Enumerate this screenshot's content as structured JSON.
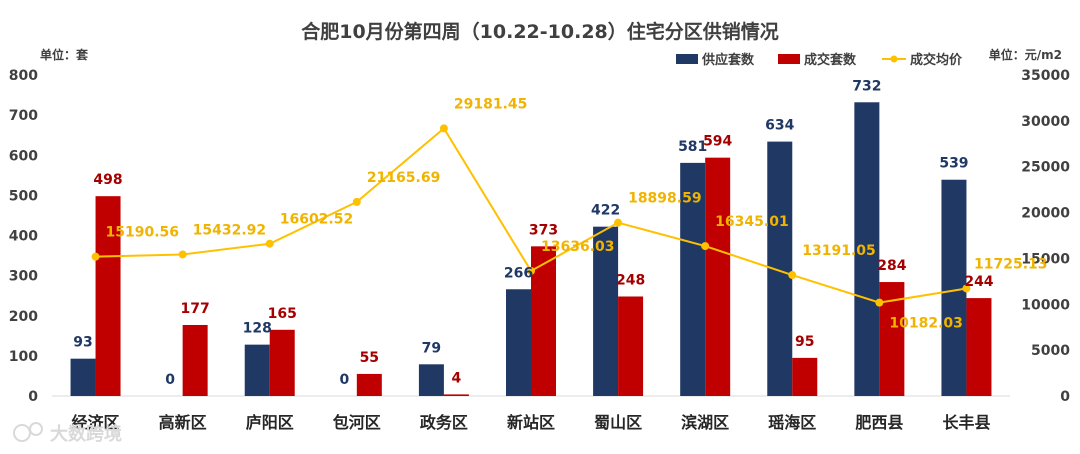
{
  "chart_data": {
    "type": "bar",
    "title": "合肥10月份第四周（10.22-10.28）住宅分区供销情况",
    "ylabel_left": "单位：套",
    "ylabel_right": "单位：元/m2",
    "ylim_left": [
      0,
      800
    ],
    "ylim_right": [
      0,
      35000
    ],
    "yticks_left": [
      "0",
      "100",
      "200",
      "300",
      "400",
      "500",
      "600",
      "700",
      "800"
    ],
    "yticks_right": [
      "0",
      "5000",
      "10000",
      "15000",
      "20000",
      "25000",
      "30000",
      "35000"
    ],
    "legend_position": "top-right",
    "grid": false,
    "categories": [
      "经济区",
      "高新区",
      "庐阳区",
      "包河区",
      "政务区",
      "新站区",
      "蜀山区",
      "滨湖区",
      "瑶海区",
      "肥西县",
      "长丰县"
    ],
    "series": [
      {
        "name": "供应套数",
        "kind": "bar",
        "axis": "left",
        "color": "#1f3864",
        "values": [
          93,
          0,
          128,
          0,
          79,
          266,
          422,
          581,
          634,
          732,
          539
        ],
        "labels": [
          "93",
          "0",
          "128",
          "0",
          "79",
          "266",
          "422",
          "581",
          "634",
          "732",
          "539"
        ]
      },
      {
        "name": "成交套数",
        "kind": "bar",
        "axis": "left",
        "color": "#c00000",
        "values": [
          498,
          177,
          165,
          55,
          4,
          373,
          248,
          594,
          95,
          284,
          244
        ],
        "labels": [
          "498",
          "177",
          "165",
          "55",
          "4",
          "373",
          "248",
          "594",
          "95",
          "284",
          "244"
        ]
      },
      {
        "name": "成交均价",
        "kind": "line",
        "axis": "right",
        "color": "#ffc000",
        "values": [
          15190.56,
          15432.92,
          16602.52,
          21165.69,
          29181.45,
          13636.03,
          18898.59,
          16345.01,
          13191.05,
          10182.03,
          11725.13
        ],
        "labels": [
          "15190.56",
          "15432.92",
          "16602.52",
          "21165.69",
          "29181.45",
          "13636.03",
          "18898.59",
          "16345.01",
          "13191.05",
          "10182.03",
          "11725.13"
        ]
      }
    ]
  },
  "watermark": "大数跨境"
}
